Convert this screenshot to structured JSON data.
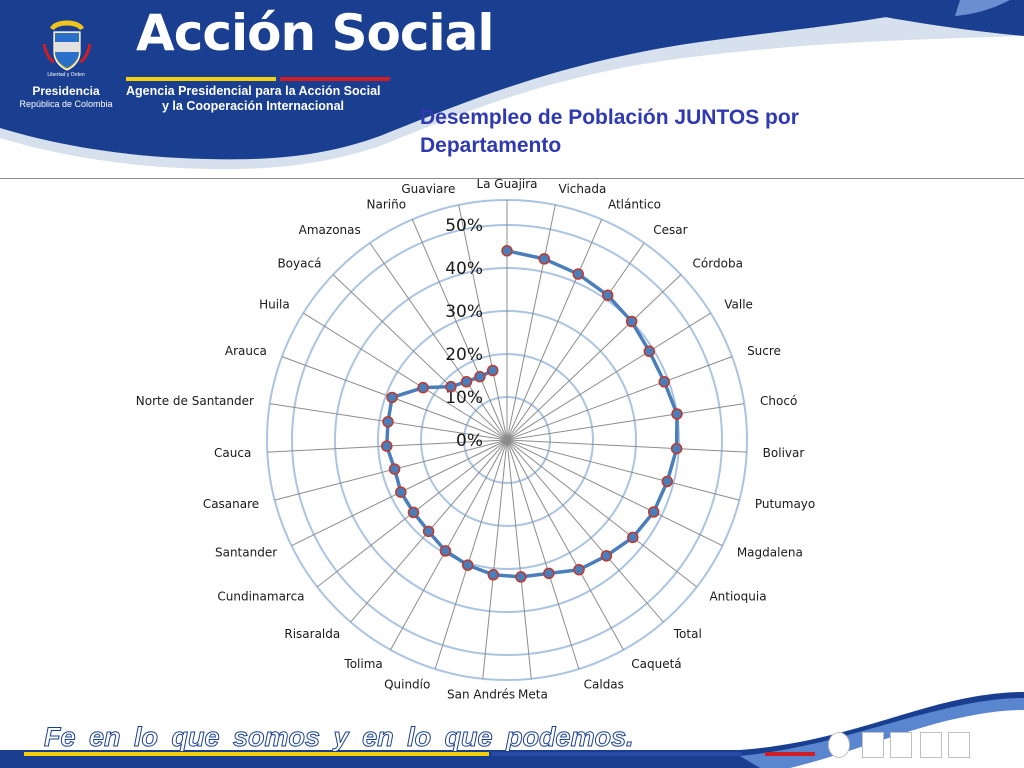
{
  "header": {
    "gov_motto": "Libertad y Orden",
    "presidencia": "Presidencia",
    "republica": "República de Colombia",
    "brand": "Acción Social",
    "brand_sub_line1": "Agencia Presidencial para la Acción Social",
    "brand_sub_line2": "y la Cooperación Internacional"
  },
  "slide": {
    "title": "Desempleo de Población JUNTOS por Departamento"
  },
  "footer": {
    "slogan": "Fe en lo que somos y en lo que podemos."
  },
  "colors": {
    "header_blue": "#1a3f91",
    "series_line": "#4a7ebb",
    "marker_fill": "#4a7ebb",
    "marker_border": "#c0392b",
    "ring": "#aac4e2",
    "spoke": "#8c8c8c",
    "title": "#2f39b0"
  },
  "chart_data": {
    "type": "radar",
    "title": "",
    "categories": [
      "La Guajira",
      "Vichada",
      "Atlántico",
      "Cesar",
      "Córdoba",
      "Valle",
      "Sucre",
      "Chocó",
      "Bolivar",
      "Putumayo",
      "Magdalena",
      "Antioquia",
      "Total",
      "Caquetá",
      "Caldas",
      "Meta",
      "San Andrés",
      "Quindío",
      "Tolima",
      "Risaralda",
      "Cundinamarca",
      "Santander",
      "Casanare",
      "Cauca",
      "Norte de Santander",
      "Arauca",
      "Huila",
      "Boyacá",
      "Amazonas",
      "Nariño",
      "Guaviare"
    ],
    "series": [
      {
        "values": [
          0.44,
          0.43,
          0.42,
          0.41,
          0.4,
          0.39,
          0.39,
          0.4,
          0.395,
          0.385,
          0.38,
          0.37,
          0.355,
          0.345,
          0.325,
          0.32,
          0.315,
          0.305,
          0.295,
          0.28,
          0.275,
          0.275,
          0.27,
          0.28,
          0.28,
          0.285,
          0.23,
          0.18,
          0.165,
          0.16,
          0.165
        ]
      }
    ],
    "r_ticks": [
      "0%",
      "10%",
      "20%",
      "30%",
      "40%",
      "50%"
    ],
    "r_range": [
      0,
      0.5
    ],
    "grid": true,
    "legend": "none"
  }
}
